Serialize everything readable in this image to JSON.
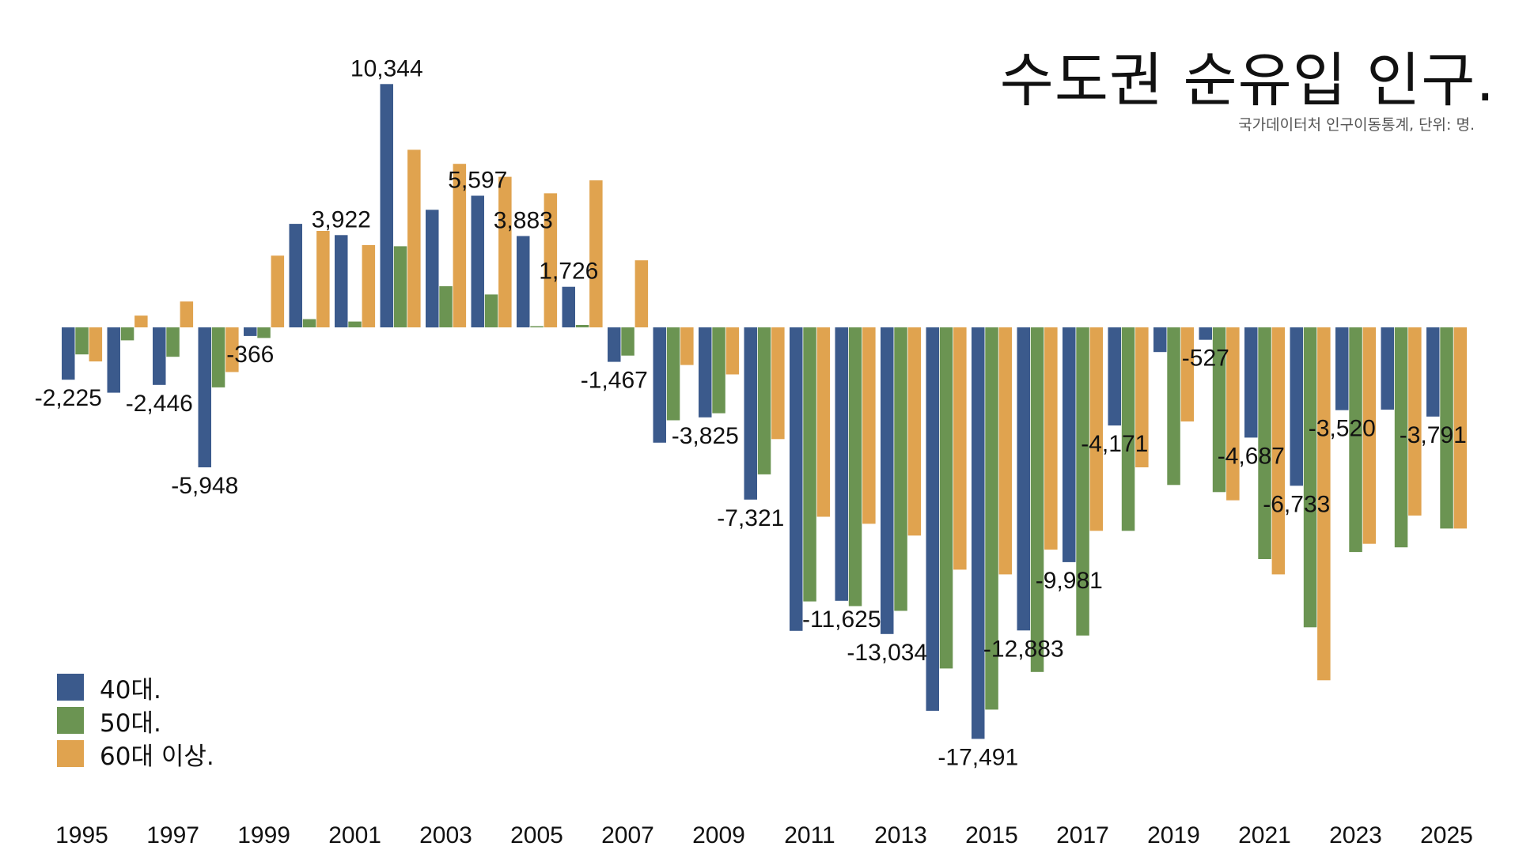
{
  "chart_data": {
    "type": "bar",
    "title": "수도권 순유입 인구.",
    "subtitle": "국가데이터처 인구이동통계, 단위: 명.",
    "xlabel": "",
    "ylabel": "",
    "ylim": [
      -17491,
      10344
    ],
    "grid": false,
    "legend_position": "bottom-left",
    "categories": [
      "1995",
      "1996",
      "1997",
      "1998",
      "1999",
      "2000",
      "2001",
      "2002",
      "2003",
      "2004",
      "2005",
      "2006",
      "2007",
      "2008",
      "2009",
      "2010",
      "2011",
      "2012",
      "2013",
      "2014",
      "2015",
      "2016",
      "2017",
      "2018",
      "2019",
      "2020",
      "2021",
      "2022",
      "2023",
      "2024",
      "2025"
    ],
    "x_tick_labels": [
      "1995",
      "1997",
      "1999",
      "2001",
      "2003",
      "2005",
      "2007",
      "2009",
      "2011",
      "2013",
      "2015",
      "2017",
      "2019",
      "2021",
      "2023",
      "2025"
    ],
    "series": [
      {
        "name": "40대.",
        "color": "#3b5a8c",
        "values": [
          -2225,
          -2775,
          -2446,
          -5948,
          -366,
          4400,
          3922,
          10344,
          5000,
          5597,
          3883,
          1726,
          -1467,
          -4900,
          -3825,
          -7321,
          -12900,
          -11625,
          -13034,
          -16300,
          -17491,
          -12883,
          -9981,
          -4171,
          -1050,
          -527,
          -4687,
          -6733,
          -3520,
          -3500,
          -3791
        ]
      },
      {
        "name": "50대.",
        "color": "#6b9452",
        "values": [
          -1150,
          -550,
          -1250,
          -2550,
          -450,
          350,
          250,
          3450,
          1750,
          1400,
          50,
          100,
          -1200,
          -3950,
          -3650,
          -6250,
          -11650,
          -11850,
          -12050,
          -14500,
          -16250,
          -14650,
          -13100,
          -8650,
          -6700,
          -7000,
          -9850,
          -12750,
          -9550,
          -9350,
          -8550
        ]
      },
      {
        "name": "60대 이상.",
        "color": "#e0a34f",
        "values": [
          -1450,
          500,
          1100,
          -1900,
          3050,
          4100,
          3500,
          7550,
          6950,
          6400,
          5700,
          6250,
          2850,
          -1600,
          -2000,
          -4750,
          -8050,
          -8350,
          -8850,
          -10300,
          -10500,
          -9450,
          -8650,
          -5950,
          -4000,
          -7350,
          -10500,
          -15000,
          -9200,
          -8000,
          -8550
        ]
      }
    ],
    "data_labels": [
      {
        "category": "1995",
        "text": "-2,225"
      },
      {
        "category": "1997",
        "text": "-2,446"
      },
      {
        "category": "1998",
        "text": "-5,948"
      },
      {
        "category": "1999",
        "text": "-366"
      },
      {
        "category": "2001",
        "text": "3,922"
      },
      {
        "category": "2002",
        "text": "10,344"
      },
      {
        "category": "2004",
        "text": "5,597"
      },
      {
        "category": "2005",
        "text": "3,883"
      },
      {
        "category": "2006",
        "text": "1,726"
      },
      {
        "category": "2007",
        "text": "-1,467"
      },
      {
        "category": "2009",
        "text": "-3,825"
      },
      {
        "category": "2010",
        "text": "-7,321"
      },
      {
        "category": "2012",
        "text": "-11,625"
      },
      {
        "category": "2013",
        "text": "-13,034"
      },
      {
        "category": "2015",
        "text": "-17,491"
      },
      {
        "category": "2016",
        "text": "-12,883"
      },
      {
        "category": "2017",
        "text": "-9,981"
      },
      {
        "category": "2018",
        "text": "-4,171"
      },
      {
        "category": "2020",
        "text": "-527"
      },
      {
        "category": "2021",
        "text": "-4,687"
      },
      {
        "category": "2022",
        "text": "-6,733"
      },
      {
        "category": "2023",
        "text": "-3,520"
      },
      {
        "category": "2025",
        "text": "-3,791"
      }
    ]
  }
}
